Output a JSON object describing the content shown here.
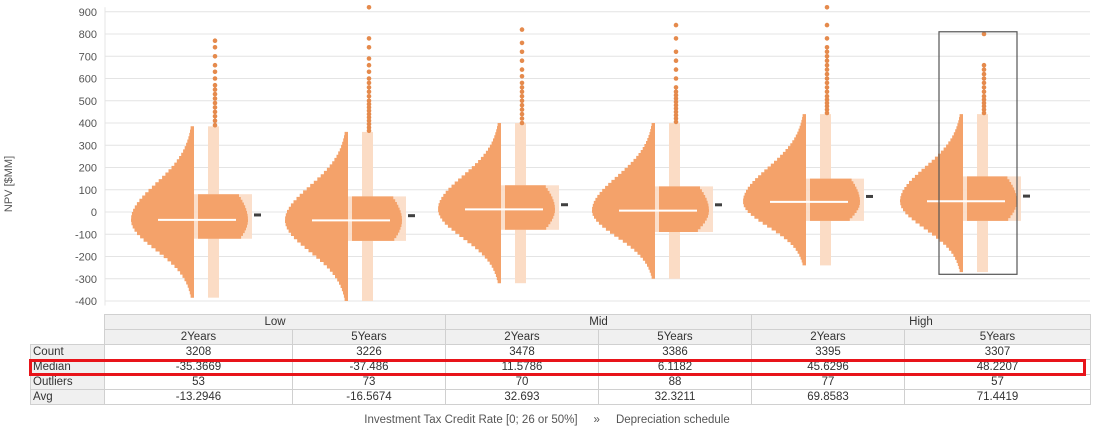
{
  "chart_data": {
    "type": "violin",
    "ylabel": "NPV [$MM]",
    "ylim": [
      -420,
      920
    ],
    "yticks": [
      -400,
      -300,
      -200,
      -100,
      0,
      100,
      200,
      300,
      400,
      500,
      600,
      700,
      800,
      900
    ],
    "x_axis_label": "Investment Tax Credit Rate [0; 26 or 50%]",
    "x_axis_sep": "»",
    "x_axis_label2": "Depreciation schedule",
    "groups": [
      "Low",
      "Mid",
      "High"
    ],
    "subgroups": [
      "2Years",
      "5Years",
      "2Years",
      "5Years",
      "2Years",
      "5Years"
    ],
    "series": [
      {
        "group": "Low",
        "subgroup": "2Years",
        "min": -390,
        "max": 380,
        "whisker_low": -385,
        "whisker_high": 385,
        "q1": -120,
        "q3": 80,
        "median": -35.3669,
        "avg": -13.2946,
        "outliers": [
          390,
          410,
          430,
          450,
          470,
          490,
          510,
          530,
          550,
          570,
          600,
          630,
          660,
          700,
          740,
          770
        ]
      },
      {
        "group": "Low",
        "subgroup": "5Years",
        "min": -400,
        "max": 360,
        "whisker_low": -400,
        "whisker_high": 360,
        "q1": -130,
        "q3": 70,
        "median": -37.486,
        "avg": -16.5674,
        "outliers": [
          365,
          380,
          395,
          410,
          425,
          440,
          455,
          470,
          485,
          500,
          520,
          540,
          560,
          580,
          600,
          630,
          660,
          690,
          740,
          780,
          920
        ]
      },
      {
        "group": "Mid",
        "subgroup": "2Years",
        "min": -330,
        "max": 400,
        "whisker_low": -320,
        "whisker_high": 400,
        "q1": -80,
        "q3": 120,
        "median": 11.5786,
        "avg": 32.693,
        "outliers": [
          400,
          420,
          440,
          460,
          480,
          500,
          520,
          540,
          560,
          580,
          610,
          640,
          680,
          720,
          760,
          820
        ]
      },
      {
        "group": "Mid",
        "subgroup": "5Years",
        "min": -290,
        "max": 400,
        "whisker_low": -300,
        "whisker_high": 400,
        "q1": -90,
        "q3": 115,
        "median": 6.1182,
        "avg": 32.3211,
        "outliers": [
          405,
          420,
          435,
          450,
          465,
          480,
          495,
          510,
          525,
          540,
          560,
          600,
          640,
          680,
          720,
          780,
          840
        ]
      },
      {
        "group": "High",
        "subgroup": "2Years",
        "min": -240,
        "max": 440,
        "whisker_low": -240,
        "whisker_high": 440,
        "q1": -40,
        "q3": 150,
        "median": 45.6296,
        "avg": 69.8583,
        "outliers": [
          445,
          460,
          475,
          490,
          505,
          520,
          540,
          560,
          580,
          600,
          620,
          640,
          660,
          680,
          700,
          720,
          740,
          780,
          840,
          920
        ]
      },
      {
        "group": "High",
        "subgroup": "5Years",
        "min": -270,
        "max": 440,
        "whisker_low": -270,
        "whisker_high": 440,
        "q1": -40,
        "q3": 160,
        "median": 48.2207,
        "avg": 71.4419,
        "outliers": [
          445,
          460,
          475,
          490,
          505,
          520,
          540,
          560,
          580,
          600,
          620,
          640,
          660,
          800
        ],
        "selected": true
      }
    ],
    "colors": {
      "violin": "#f4a26a",
      "box": "#fbdcc5",
      "outlier": "#e58a4c",
      "median": "#ffffff",
      "avg_marker": "#404040",
      "grid": "#e4e4e4",
      "highlight": "#e8141a"
    }
  },
  "table": {
    "group_headers": [
      "Low",
      "Mid",
      "High"
    ],
    "sub_headers": [
      "2Years",
      "5Years",
      "2Years",
      "5Years",
      "2Years",
      "5Years"
    ],
    "rows": [
      {
        "label": "Count",
        "values": [
          "3208",
          "3226",
          "3478",
          "3386",
          "3395",
          "3307"
        ]
      },
      {
        "label": "Median",
        "values": [
          "-35.3669",
          "-37.486",
          "11.5786",
          "6.1182",
          "45.6296",
          "48.2207"
        ]
      },
      {
        "label": "Outliers",
        "values": [
          "53",
          "73",
          "70",
          "88",
          "77",
          "57"
        ]
      },
      {
        "label": "Avg",
        "values": [
          "-13.2946",
          "-16.5674",
          "32.693",
          "32.3211",
          "69.8583",
          "71.4419"
        ]
      }
    ]
  }
}
